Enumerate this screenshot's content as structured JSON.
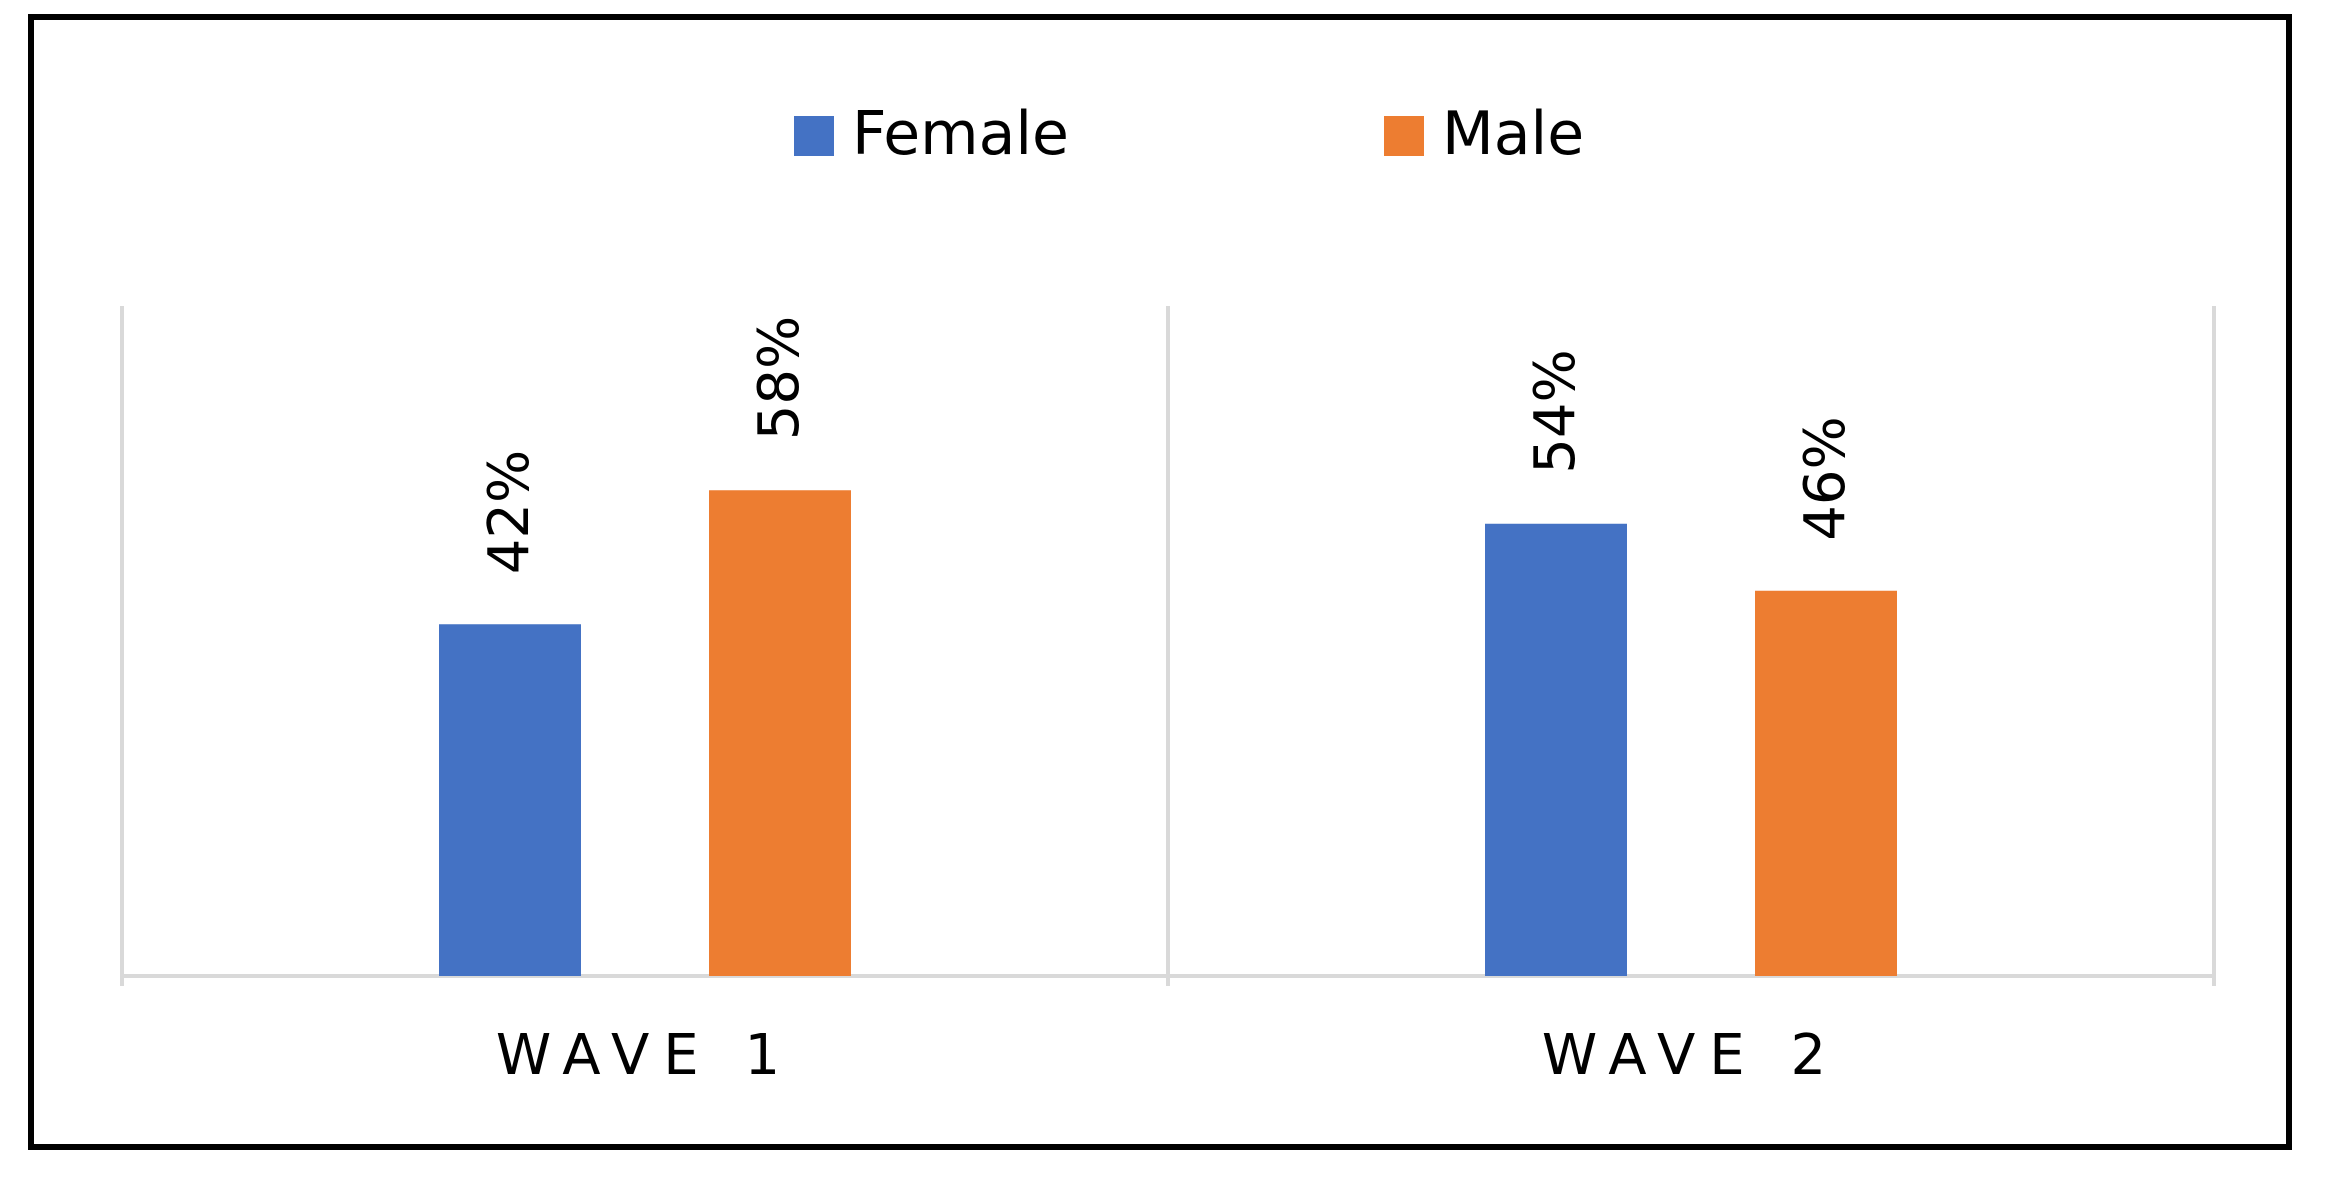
{
  "chart_data": {
    "type": "bar",
    "title": "",
    "xlabel": "",
    "ylabel": "",
    "categories": [
      "WAVE 1",
      "WAVE 2"
    ],
    "series": [
      {
        "name": "Female",
        "values": [
          42,
          54
        ],
        "labels": [
          "42%",
          "54%"
        ],
        "color": "#4472C4"
      },
      {
        "name": "Male",
        "values": [
          58,
          46
        ],
        "labels": [
          "58%",
          "46%"
        ],
        "color": "#ED7D31"
      }
    ],
    "ylim": [
      0,
      80
    ],
    "value_format": "percent",
    "legend_position": "top-center",
    "grid": false
  }
}
